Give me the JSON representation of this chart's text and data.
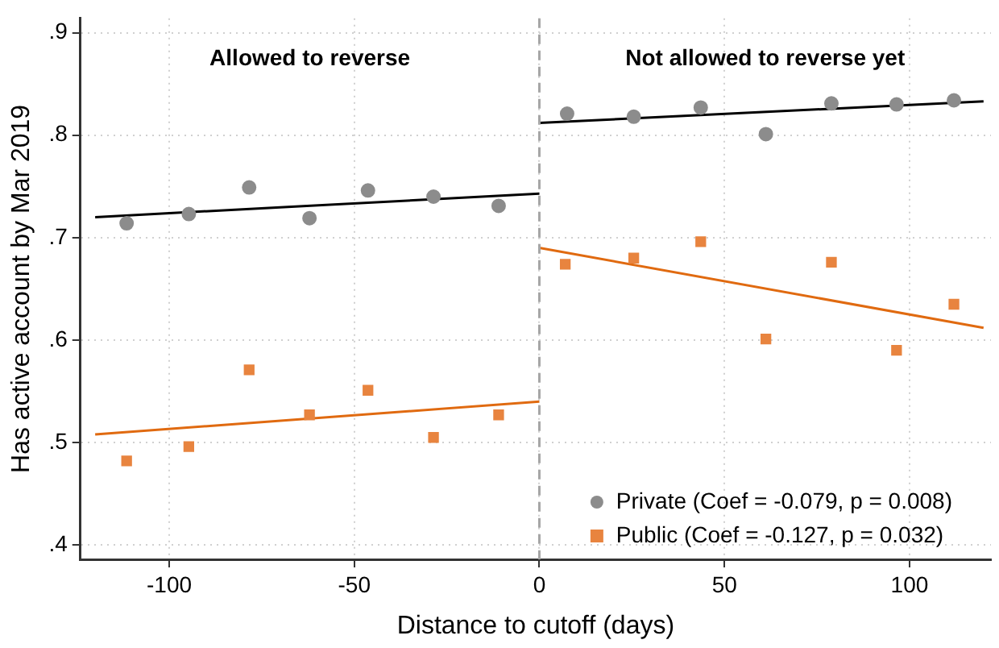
{
  "chart_data": {
    "type": "scatter",
    "xlabel": "Distance to cutoff (days)",
    "ylabel": "Has active account by Mar 2019",
    "annotations": [
      "Allowed to reverse",
      "Not allowed to reverse yet"
    ],
    "xlim": [
      -124,
      122
    ],
    "xticks": [
      -100,
      -50,
      0,
      50,
      100
    ],
    "ylim": [
      0.386,
      0.914
    ],
    "yticks": [
      {
        "value": 0.4,
        "label": ".4"
      },
      {
        "value": 0.5,
        "label": ".5"
      },
      {
        "value": 0.6,
        "label": ".6"
      },
      {
        "value": 0.7,
        "label": ".7"
      },
      {
        "value": 0.8,
        "label": ".8"
      },
      {
        "value": 0.9,
        "label": ".9"
      }
    ],
    "grid": true,
    "legend": "bottom right",
    "ref_lines": [
      {
        "axis": "x",
        "value": 0,
        "color": "#a6a6a6",
        "line_style": "dashed"
      }
    ],
    "series": [
      {
        "name": "Private (Coef = -0.079, p = 0.008)",
        "marker": "circle",
        "color": "#8c8c8c",
        "x": [
          -111.5,
          -94.7,
          -78.4,
          -62.1,
          -46.3,
          -28.6,
          -11,
          7.5,
          25.5,
          43.6,
          61.2,
          78.9,
          96.5,
          112
        ],
        "values": [
          0.714,
          0.723,
          0.749,
          0.719,
          0.746,
          0.74,
          0.731,
          0.821,
          0.818,
          0.827,
          0.801,
          0.831,
          0.83,
          0.834
        ]
      },
      {
        "name": "Public (Coef = -0.127, p = 0.032)",
        "marker": "square",
        "color": "#e8843f",
        "x": [
          -111.5,
          -94.7,
          -78.4,
          -62.1,
          -46.3,
          -28.6,
          -11,
          7,
          25.5,
          43.6,
          61.2,
          78.9,
          96.5,
          112
        ],
        "values": [
          0.482,
          0.496,
          0.571,
          0.527,
          0.551,
          0.505,
          0.527,
          0.674,
          0.68,
          0.696,
          0.601,
          0.676,
          0.59,
          0.635
        ]
      },
      {
        "type": "line",
        "marker": "none",
        "color": "#000000",
        "x": [
          -120,
          0
        ],
        "values": [
          0.72,
          0.743
        ]
      },
      {
        "type": "line",
        "marker": "none",
        "color": "#000000",
        "x": [
          0,
          120
        ],
        "values": [
          0.812,
          0.833
        ]
      },
      {
        "type": "line",
        "marker": "none",
        "color": "#e06a10",
        "x": [
          -120,
          0
        ],
        "values": [
          0.508,
          0.54
        ]
      },
      {
        "type": "line",
        "marker": "none",
        "color": "#e06a10",
        "x": [
          0,
          120
        ],
        "values": [
          0.69,
          0.612
        ]
      }
    ]
  }
}
